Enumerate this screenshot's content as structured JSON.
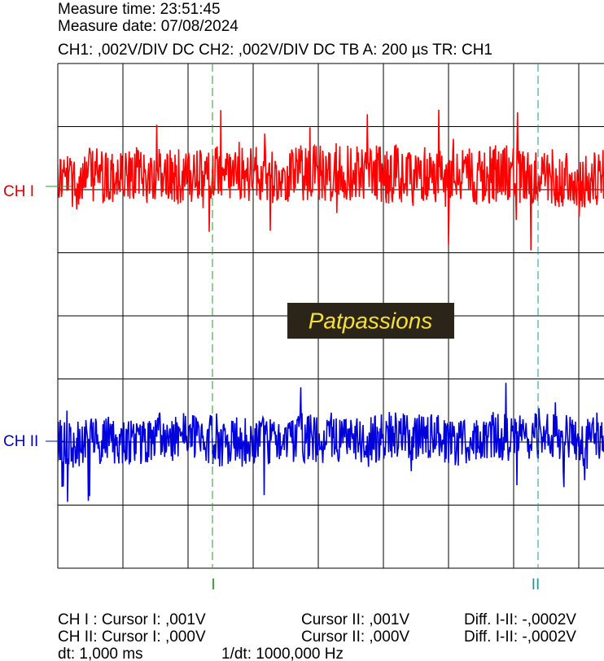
{
  "header": {
    "measure_time": "Measure time: 23:51:45",
    "measure_date": "Measure date: 07/08/2024",
    "settings": "CH1: ,002V/DIV DC  CH2: ,002V/DIV DC   TB A: 200 µs  TR: CH1"
  },
  "channels": {
    "ch1": "CH I",
    "ch2": "CH II"
  },
  "cursors": {
    "cursor1": "I",
    "cursor2": "II"
  },
  "logo": "Patpassions",
  "readouts": {
    "rows": [
      [
        "CH I :  Cursor I: ,001V",
        "Cursor II: ,001V",
        "Diff. I-II: -,0002V"
      ],
      [
        "CH II:  Cursor I: ,000V",
        "Cursor II: ,000V",
        "Diff. I-II: -,0002V"
      ],
      [
        "dt: 1,000 ms",
        "1/dt: 1000,000 Hz"
      ]
    ]
  }
}
